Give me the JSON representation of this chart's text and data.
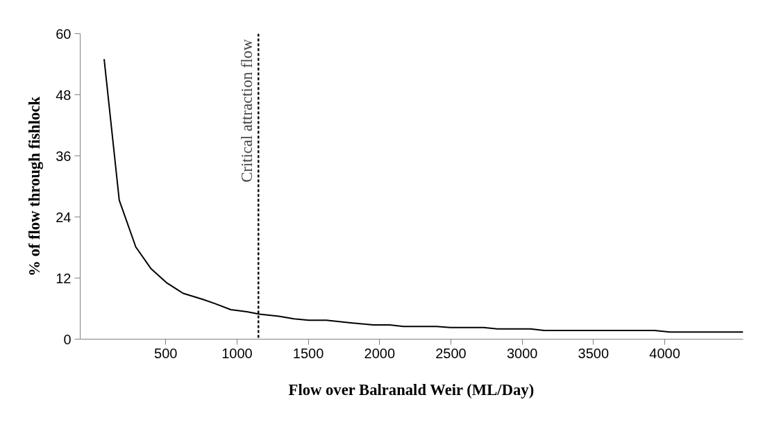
{
  "chart_data": {
    "type": "line",
    "xlabel": "Flow over Balranald Weir (ML/Day)",
    "ylabel": "% of flow through fishlock",
    "x": [
      68,
      174,
      290,
      398,
      505,
      622,
      761,
      843,
      956,
      1069,
      1158,
      1293,
      1400,
      1504,
      1627,
      1762,
      1956,
      2071,
      2168,
      2400,
      2497,
      2729,
      2826,
      3058,
      3155,
      3929,
      4035,
      4550
    ],
    "series": [
      {
        "color": "#000000",
        "values": [
          55,
          27.3,
          18.1,
          13.8,
          11.1,
          9.0,
          7.8,
          7.0,
          5.8,
          5.4,
          4.9,
          4.5,
          4.0,
          3.7,
          3.7,
          3.3,
          2.8,
          2.8,
          2.5,
          2.5,
          2.3,
          2.3,
          2.0,
          2.0,
          1.7,
          1.7,
          1.4,
          1.4
        ]
      }
    ],
    "xlim": [
      -100,
      4550
    ],
    "ylim": [
      0,
      60
    ],
    "xticks": [
      500,
      1000,
      1500,
      2000,
      2500,
      3000,
      3500,
      4000
    ],
    "yticks": [
      0,
      12,
      24,
      36,
      48,
      60
    ],
    "grid": false,
    "marker": "none",
    "line_style": "solid",
    "ref_lines": [
      {
        "axis": "x",
        "value": 1150,
        "label": "Critical attraction flow",
        "color": "#000000",
        "line_style": "dashed"
      }
    ]
  }
}
